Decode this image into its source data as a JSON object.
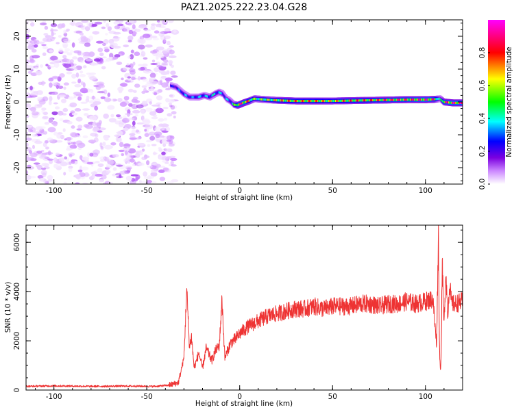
{
  "title": "PAZ1.2025.222.23.04.G28",
  "chart_data": [
    {
      "type": "heatmap",
      "xlabel": "Height of straight line (km)",
      "ylabel": "Frequency (Hz)",
      "xlim": [
        -115,
        120
      ],
      "ylim": [
        -25,
        25
      ],
      "x_ticks": [
        -100,
        -50,
        0,
        50,
        100
      ],
      "y_ticks": [
        -20,
        -10,
        0,
        10,
        20
      ],
      "colorbar": {
        "label": "Normalized spectral amplitude",
        "range": [
          0,
          1
        ],
        "ticks": [
          "0.0",
          "0.2",
          "0.4",
          "0.6",
          "0.8"
        ],
        "colors": [
          "#ffffff",
          "#cc88ff",
          "#7b00e0",
          "#0000ff",
          "#00ffff",
          "#00ff00",
          "#ffff00",
          "#ff0000",
          "#ff00ff"
        ]
      },
      "noise_region": {
        "x": [
          -115,
          -37
        ],
        "y": [
          -25,
          25
        ],
        "amplitude": "low (0.1-0.3)"
      },
      "ridge": {
        "x": [
          -37,
          -34,
          -32,
          -30,
          -27,
          -25,
          -22,
          -19,
          -16,
          -13,
          -11,
          -9,
          -7,
          -5,
          -3,
          -1,
          2,
          5,
          8,
          12,
          20,
          30,
          40,
          50,
          60,
          70,
          80,
          90,
          100,
          105,
          108,
          110,
          115,
          120
        ],
        "freq_hz": [
          5,
          4.5,
          3.5,
          2.5,
          1.5,
          1.5,
          1.5,
          2,
          1.5,
          2.5,
          3,
          2.5,
          1,
          0.3,
          -0.8,
          -1,
          -0.3,
          0.3,
          1,
          0.8,
          0.5,
          0.3,
          0.3,
          0.3,
          0.4,
          0.5,
          0.6,
          0.7,
          0.7,
          0.8,
          1,
          0,
          -0.3,
          -0.3
        ],
        "amplitude": [
          0.35,
          0.4,
          0.45,
          0.5,
          0.45,
          0.45,
          0.5,
          0.5,
          0.5,
          0.55,
          0.5,
          0.5,
          0.5,
          0.5,
          0.6,
          0.9,
          0.95,
          0.85,
          0.7,
          0.7,
          0.8,
          0.85,
          0.85,
          0.8,
          0.85,
          0.85,
          0.9,
          0.9,
          0.95,
          0.9,
          0.5,
          0.9,
          0.95,
          0.95
        ]
      }
    },
    {
      "type": "line",
      "xlabel": "Height of straight line (km)",
      "ylabel": "SNR (10 * v/v)",
      "xlim": [
        -115,
        120
      ],
      "ylim": [
        0,
        6700
      ],
      "x_ticks": [
        -100,
        -50,
        0,
        50,
        100
      ],
      "y_ticks": [
        0,
        2000,
        4000,
        6000
      ],
      "series": [
        {
          "color": "#ee3333",
          "x": [
            -115,
            -100,
            -80,
            -60,
            -45,
            -38,
            -33,
            -30,
            -28.5,
            -27,
            -26,
            -24.5,
            -22,
            -20,
            -18,
            -15,
            -13,
            -11,
            -9.5,
            -8,
            -5,
            -2,
            0,
            5,
            10,
            15,
            20,
            25,
            30,
            35,
            40,
            45,
            50,
            55,
            60,
            65,
            70,
            75,
            80,
            85,
            90,
            95,
            100,
            104,
            106,
            107,
            107.5,
            108,
            108.5,
            109,
            110,
            111,
            112,
            113,
            114,
            116,
            118,
            120
          ],
          "y": [
            150,
            170,
            150,
            160,
            150,
            200,
            300,
            1300,
            4100,
            1700,
            2200,
            900,
            1500,
            900,
            1700,
            1200,
            1600,
            1800,
            3700,
            1300,
            1900,
            2100,
            2300,
            2600,
            2800,
            3000,
            3100,
            3200,
            3300,
            3300,
            3400,
            3300,
            3400,
            3400,
            3400,
            3500,
            3500,
            3400,
            3500,
            3500,
            3600,
            3500,
            3600,
            3700,
            1800,
            6500,
            2000,
            700,
            1500,
            5300,
            2600,
            4900,
            3000,
            4400,
            3500,
            3500,
            3550,
            3600
          ]
        }
      ]
    }
  ]
}
